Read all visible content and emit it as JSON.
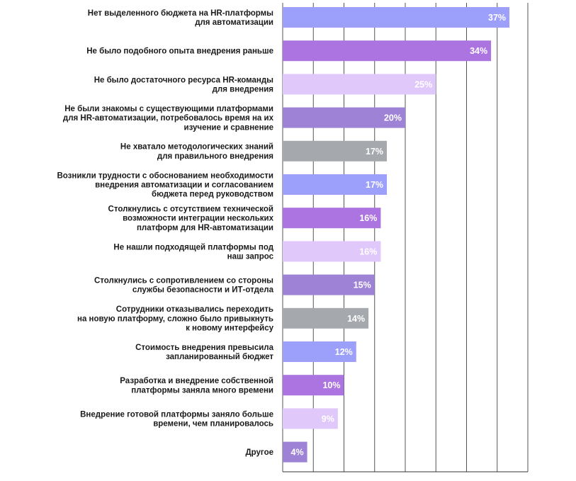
{
  "chart_data": {
    "type": "bar",
    "orientation": "horizontal",
    "title": "",
    "xlabel": "",
    "ylabel": "",
    "xlim": [
      0,
      40
    ],
    "grid": true,
    "categories": [
      "Нет выделенного бюджета на HR-платформы|для автоматизации",
      "Не было подобного опыта внедрения раньше",
      "Не было достаточного ресурса HR-команды|для внедрения",
      "Не были знакомы с существующими платформами|для HR-автоматизации, потребовалось время на их|изучение и сравнение",
      "Не хватало методологических знаний|для правильного внедрения",
      "Возникли трудности с обоснованием необходимости|внедрения автоматизации и согласованием|бюджета перед руководством",
      "Столкнулись с отсутствием технической|возможности интеграции нескольких|платформ для HR-автоматизации",
      "Не нашли подходящей платформы под|наш запрос",
      "Столкнулись с сопротивлением со стороны|службы безопасности и ИТ-отдела",
      "Сотрудники отказывались переходить|на новую платформу, сложно было привыкнуть|к новому интерфейсу",
      "Стоимость внедрения превысила|запланированный бюджет",
      "Разработка и внедрение собственной|платформы заняла много времени",
      "Внедрение готовой платформы заняло больше|времени, чем планировалось",
      "Другое"
    ],
    "values": [
      37,
      34,
      25,
      20,
      17,
      17,
      16,
      16,
      15,
      14,
      12,
      10,
      9,
      4
    ],
    "value_labels": [
      "37%",
      "34%",
      "25%",
      "20%",
      "17%",
      "17%",
      "16%",
      "16%",
      "15%",
      "14%",
      "12%",
      "10%",
      "9%",
      "4%"
    ],
    "bar_colors": [
      "#9ca0fb",
      "#ac74e0",
      "#e0c8fb",
      "#9e82d6",
      "#a5a8ad",
      "#9ca0fb",
      "#ac74e0",
      "#e0c8fb",
      "#9e82d6",
      "#a5a8ad",
      "#9ca0fb",
      "#ac74e0",
      "#e0c8fb",
      "#9e82d6"
    ],
    "colors": {
      "grid": "#555555",
      "axis": "#333333",
      "label": "#1a1a1a",
      "value_text": "#ffffff"
    }
  }
}
